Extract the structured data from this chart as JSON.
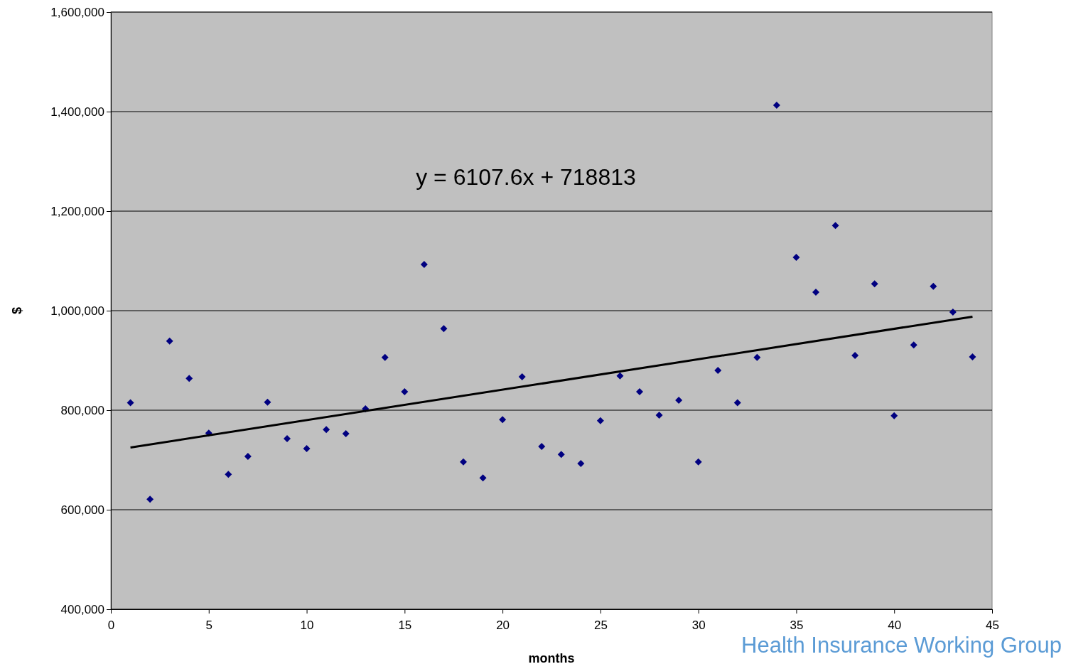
{
  "chart_data": {
    "type": "scatter",
    "xlabel": "months",
    "ylabel": "$",
    "xlim": [
      0,
      45
    ],
    "xticks": [
      0,
      5,
      10,
      15,
      20,
      25,
      30,
      35,
      40,
      45
    ],
    "ylim": [
      400000,
      1600000
    ],
    "yticks": [
      {
        "value": 400000,
        "label": "400,000"
      },
      {
        "value": 600000,
        "label": "600,000"
      },
      {
        "value": 800000,
        "label": "800,000"
      },
      {
        "value": 1000000,
        "label": "1,000,000"
      },
      {
        "value": 1200000,
        "label": "1,200,000"
      },
      {
        "value": 1400000,
        "label": "1,400,000"
      },
      {
        "value": 1600000,
        "label": "1,600,000"
      }
    ],
    "grid": "y",
    "marker": "diamond",
    "series": [
      {
        "color": "#000080",
        "x": [
          1,
          2,
          3,
          4,
          5,
          6,
          7,
          8,
          9,
          10,
          11,
          12,
          13,
          14,
          15,
          16,
          17,
          18,
          19,
          20,
          21,
          22,
          23,
          24,
          25,
          26,
          27,
          28,
          29,
          30,
          31,
          32,
          33,
          34,
          35,
          36,
          37,
          38,
          39,
          40,
          41,
          42,
          43,
          44
        ],
        "values": [
          815000,
          621000,
          939000,
          864000,
          754000,
          671000,
          707000,
          816000,
          743000,
          723000,
          761000,
          753000,
          803000,
          906000,
          837000,
          1093000,
          964000,
          696000,
          664000,
          781000,
          867000,
          727000,
          711000,
          693000,
          779000,
          869000,
          837000,
          790000,
          820000,
          696000,
          880000,
          815000,
          906000,
          1413000,
          1107000,
          1037000,
          1171000,
          910000,
          1054000,
          789000,
          931000,
          1049000,
          997000,
          907000
        ]
      },
      {
        "type": "line",
        "marker": "none",
        "color": "#000000",
        "line_style": "solid",
        "x": [
          1,
          44
        ],
        "values": [
          725000,
          988000
        ]
      }
    ],
    "annotations": [
      "y = 6107.6x + 718813",
      "Health Insurance Working Group"
    ]
  }
}
